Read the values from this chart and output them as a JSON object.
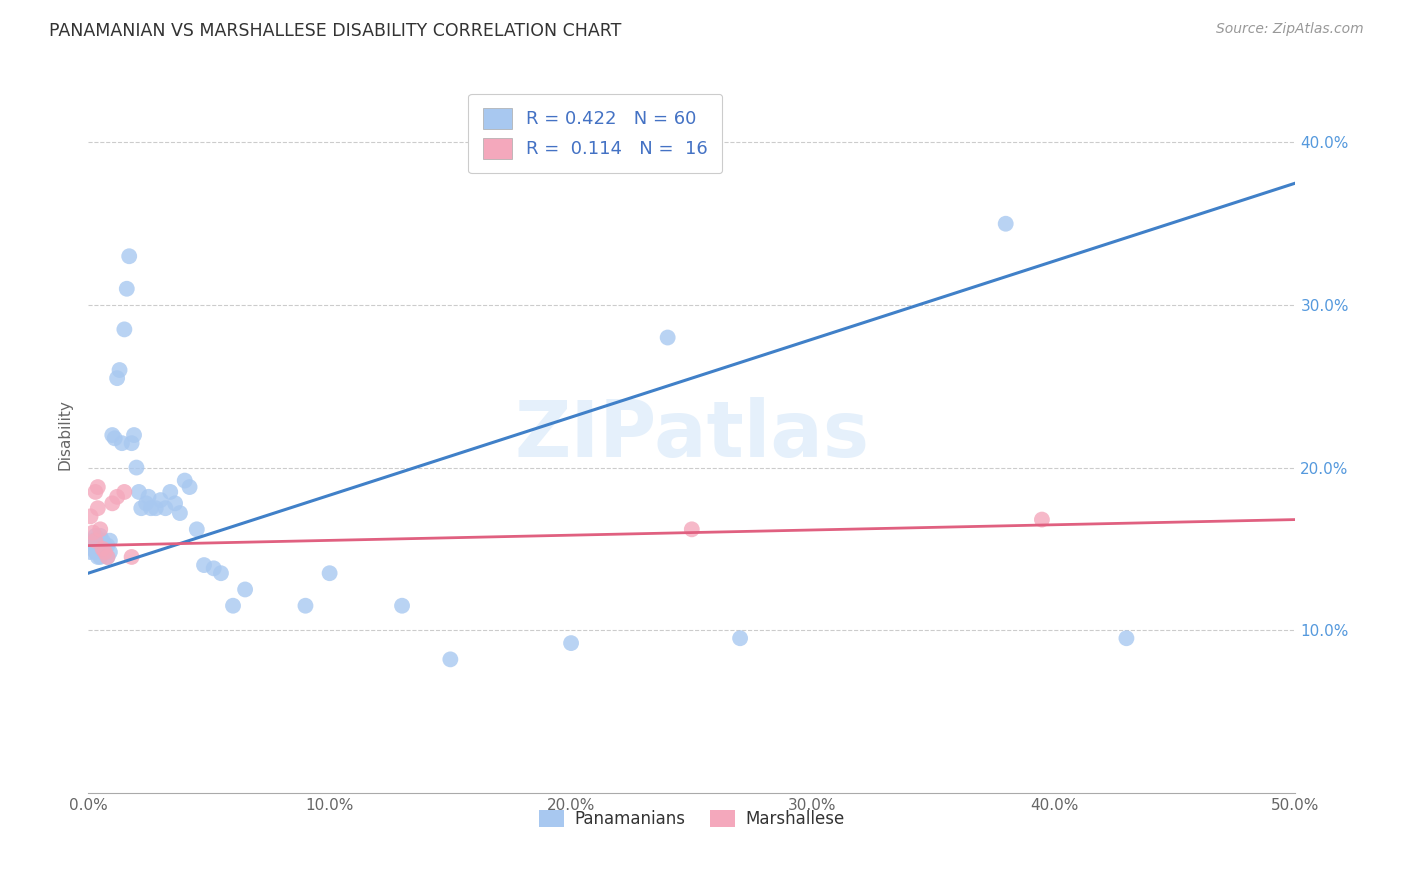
{
  "title": "PANAMANIAN VS MARSHALLESE DISABILITY CORRELATION CHART",
  "source": "Source: ZipAtlas.com",
  "ylabel": "Disability",
  "xlim": [
    0.0,
    0.5
  ],
  "ylim": [
    0.0,
    0.44
  ],
  "xticks": [
    0.0,
    0.1,
    0.2,
    0.3,
    0.4,
    0.5
  ],
  "yticks": [
    0.1,
    0.2,
    0.3,
    0.4
  ],
  "xticklabels": [
    "0.0%",
    "10.0%",
    "20.0%",
    "30.0%",
    "40.0%",
    "50.0%"
  ],
  "right_yticklabels": [
    "10.0%",
    "20.0%",
    "30.0%",
    "40.0%"
  ],
  "blue_color": "#A8C8F0",
  "pink_color": "#F4A8BC",
  "blue_line_color": "#4080C8",
  "pink_line_color": "#E06080",
  "legend_label_color": "#4472C4",
  "R_blue": 0.422,
  "N_blue": 60,
  "R_pink": 0.114,
  "N_pink": 16,
  "blue_line_x0": 0.0,
  "blue_line_y0": 0.135,
  "blue_line_x1": 0.5,
  "blue_line_y1": 0.375,
  "pink_line_x0": 0.0,
  "pink_line_y0": 0.152,
  "pink_line_x1": 0.5,
  "pink_line_y1": 0.168,
  "blue_scatter_x": [
    0.001,
    0.001,
    0.002,
    0.002,
    0.003,
    0.003,
    0.003,
    0.004,
    0.004,
    0.004,
    0.005,
    0.005,
    0.005,
    0.006,
    0.006,
    0.007,
    0.007,
    0.008,
    0.008,
    0.009,
    0.009,
    0.01,
    0.011,
    0.012,
    0.013,
    0.014,
    0.015,
    0.016,
    0.017,
    0.018,
    0.019,
    0.02,
    0.021,
    0.022,
    0.024,
    0.025,
    0.026,
    0.028,
    0.03,
    0.032,
    0.034,
    0.036,
    0.038,
    0.04,
    0.042,
    0.045,
    0.048,
    0.052,
    0.055,
    0.06,
    0.065,
    0.09,
    0.1,
    0.13,
    0.15,
    0.2,
    0.24,
    0.27,
    0.38,
    0.43
  ],
  "blue_scatter_y": [
    0.148,
    0.152,
    0.15,
    0.155,
    0.148,
    0.152,
    0.158,
    0.145,
    0.15,
    0.155,
    0.145,
    0.152,
    0.158,
    0.148,
    0.155,
    0.148,
    0.152,
    0.145,
    0.152,
    0.148,
    0.155,
    0.22,
    0.218,
    0.255,
    0.26,
    0.215,
    0.285,
    0.31,
    0.33,
    0.215,
    0.22,
    0.2,
    0.185,
    0.175,
    0.178,
    0.182,
    0.175,
    0.175,
    0.18,
    0.175,
    0.185,
    0.178,
    0.172,
    0.192,
    0.188,
    0.162,
    0.14,
    0.138,
    0.135,
    0.115,
    0.125,
    0.115,
    0.135,
    0.115,
    0.082,
    0.092,
    0.28,
    0.095,
    0.35,
    0.095
  ],
  "pink_scatter_x": [
    0.001,
    0.002,
    0.003,
    0.003,
    0.004,
    0.004,
    0.005,
    0.006,
    0.007,
    0.008,
    0.01,
    0.012,
    0.015,
    0.018,
    0.25,
    0.395
  ],
  "pink_scatter_y": [
    0.17,
    0.16,
    0.155,
    0.185,
    0.175,
    0.188,
    0.162,
    0.15,
    0.148,
    0.145,
    0.178,
    0.182,
    0.185,
    0.145,
    0.162,
    0.168
  ],
  "watermark": "ZIPatlas"
}
